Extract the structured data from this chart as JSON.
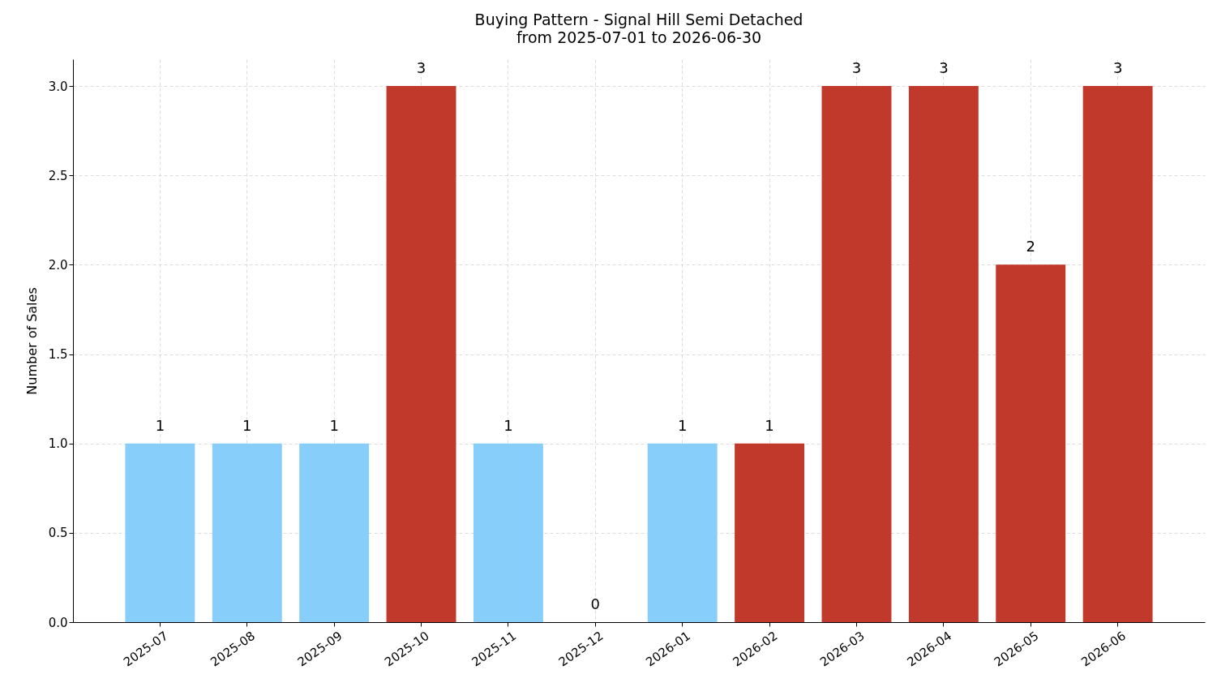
{
  "chart_data": {
    "type": "bar",
    "title": "Buying Pattern - Signal Hill Semi Detached",
    "subtitle": "from 2025-07-01 to 2026-06-30",
    "ylabel": "Number of Sales",
    "categories": [
      "2025-07",
      "2025-08",
      "2025-09",
      "2025-10",
      "2025-11",
      "2025-12",
      "2026-01",
      "2026-02",
      "2026-03",
      "2026-04",
      "2026-05",
      "2026-06"
    ],
    "values": [
      1,
      1,
      1,
      3,
      1,
      0,
      1,
      1,
      3,
      3,
      2,
      3
    ],
    "colors": [
      "#87cefa",
      "#87cefa",
      "#87cefa",
      "#c0392b",
      "#87cefa",
      "#87cefa",
      "#87cefa",
      "#c0392b",
      "#c0392b",
      "#c0392b",
      "#c0392b",
      "#c0392b"
    ],
    "ylim": [
      0,
      3.15
    ],
    "yticks": [
      {
        "value": 0,
        "label": "0.0"
      },
      {
        "value": 0.5,
        "label": "0.5"
      },
      {
        "value": 1,
        "label": "1.0"
      },
      {
        "value": 1.5,
        "label": "1.5"
      },
      {
        "value": 2,
        "label": "2.0"
      },
      {
        "value": 2.5,
        "label": "2.5"
      },
      {
        "value": 3,
        "label": "3.0"
      }
    ],
    "grid": true,
    "data_labels": true
  }
}
